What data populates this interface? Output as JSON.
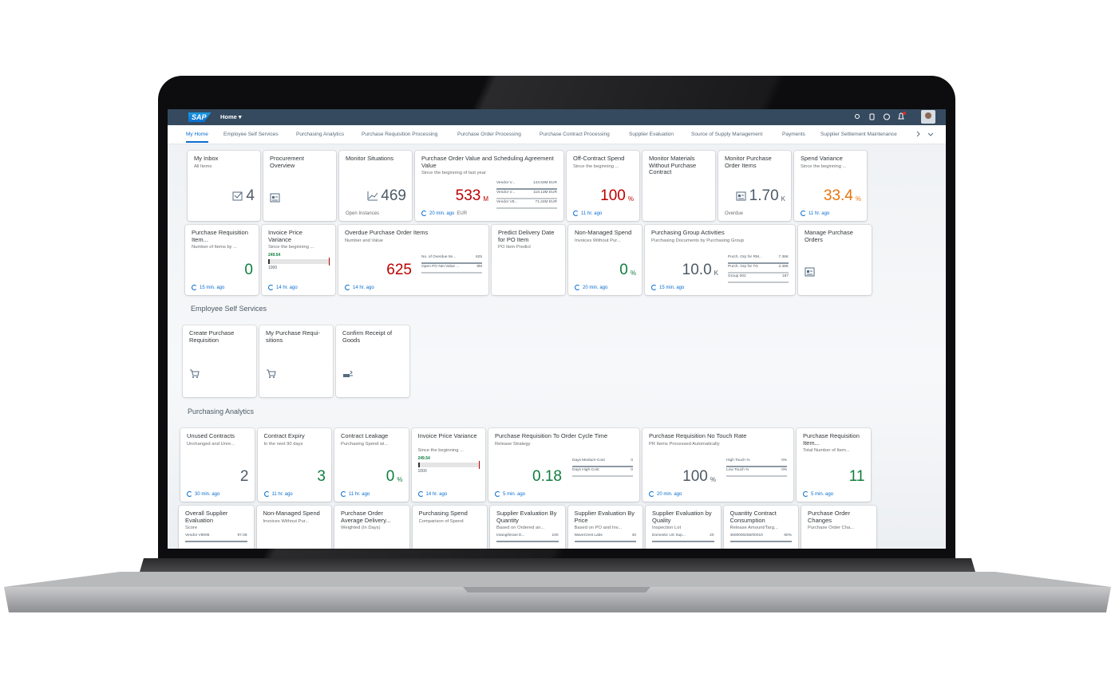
{
  "shell": {
    "logo": "SAP",
    "menu": "Home ▾"
  },
  "tabs": [
    "My Home",
    "Employee Self Services",
    "Purchasing Analytics",
    "Purchase Requisition Processing",
    "Purchase Order Processing",
    "Purchase Contract Processing",
    "Supplier Evaluation",
    "Source of Supply Management",
    "Payments",
    "Supplier Settlement Maintenance"
  ],
  "sections": [
    {
      "rows": [
        [
          {
            "title": "My Inbox",
            "subtitle": "All Items",
            "value": "4",
            "value_color": "#4d5a66"
          },
          {
            "title": "Procurement Overview"
          },
          {
            "title": "Monitor Situations",
            "value": "469",
            "value_color": "#4d5a66",
            "note": "Open Instances"
          },
          {
            "title": "Purchase Order Value and Scheduling Agreement Value",
            "subtitle": "Since the beginning of last year",
            "value": "533",
            "unit": "M",
            "value_color": "#bb0000",
            "footer": "20 min. ago",
            "note": "EUR",
            "bars": [
              {
                "label": "Vendor V...",
                "value": "143.53M EUR"
              },
              {
                "label": "Vendor V...",
                "value": "118.13M EUR"
              },
              {
                "label": "Vendor V8...",
                "value": "71.24M EUR"
              }
            ]
          },
          {
            "title": "Off-Contract Spend",
            "subtitle": "Since the beginning ...",
            "value": "100",
            "unit": "%",
            "value_color": "#bb0000",
            "footer": "11 hr. ago"
          },
          {
            "title": "Monitor Materials Without Purchase Contract"
          },
          {
            "title": "Monitor Purchase Order Items",
            "value": "1.70",
            "unit": "K",
            "value_color": "#4d5a66",
            "note": "Overdue"
          },
          {
            "title": "Spend Variance",
            "subtitle": "Since the beginning ...",
            "value": "33.4",
            "unit": "%",
            "value_color": "#e9730c",
            "footer": "11 hr. ago"
          }
        ],
        [
          {
            "title": "Purchase Requisition Item...",
            "subtitle": "Number of Items by ...",
            "value": "0",
            "value_color": "#107e3e",
            "footer": "15 min. ago"
          },
          {
            "title": "Invoice Price Variance",
            "subtitle": "Since the beginning ...",
            "bullet": [
              "249.54",
              "1000"
            ],
            "footer": "14 hr. ago"
          },
          {
            "title": "Overdue Purchase Order Items",
            "subtitle": "Number and Value",
            "value": "625",
            "value_color": "#bb0000",
            "footer": "14 hr. ago",
            "bars": [
              {
                "label": "No. of Overdue Ite...",
                "value": "625"
              },
              {
                "label": "Open PO Net Value ...",
                "value": "8M"
              }
            ]
          },
          {
            "title": "Predict Delivery Date for PO Item",
            "subtitle": "PO Item Predict"
          },
          {
            "title": "Non-Managed Spend",
            "subtitle": "Invoices Without Pur...",
            "value": "0",
            "unit": "%",
            "value_color": "#107e3e",
            "footer": "20 min. ago"
          },
          {
            "title": "Purchasing Group Activities",
            "subtitle": "Purchasing Documents by Purchasing Group",
            "value": "10.0",
            "unit": "K",
            "value_color": "#4d5a66",
            "footer": "15 min. ago",
            "bars": [
              {
                "label": "Purch. Grp for RM...",
                "value": "7.36K"
              },
              {
                "label": "Purch. Grp for TG",
                "value": "2.48K"
              },
              {
                "label": "Group 002",
                "value": "187"
              }
            ]
          },
          {
            "title": "Manage Purchase Orders"
          }
        ]
      ]
    },
    {
      "title": "Employee Self Services",
      "rows": [
        [
          {
            "title": "Create Purchase Requisition"
          },
          {
            "title": "My Purchase Requi- sitions"
          },
          {
            "title": "Confirm Receipt of Goods"
          }
        ]
      ]
    },
    {
      "title": "Purchasing Analytics",
      "rows": [
        [
          {
            "title": "Unused Contracts",
            "subtitle": "Unchanged and Unre...",
            "value": "2",
            "value_color": "#4d5a66",
            "footer": "30 min. ago"
          },
          {
            "title": "Contract Expiry",
            "subtitle": "In the next 90 days",
            "value": "3",
            "value_color": "#107e3e",
            "footer": "11 hr. ago"
          },
          {
            "title": "Contract Leakage",
            "subtitle": "Purchasing Spend wi...",
            "value": "0",
            "unit": "%",
            "value_color": "#107e3e",
            "footer": "11 hr. ago"
          },
          {
            "title": "Invoice Price Variance",
            "subtitle": "Since the beginning ...",
            "bullet": [
              "249.54",
              "1000"
            ],
            "footer": "14 hr. ago"
          },
          {
            "title": "Purchase Requisition To Order Cycle Time",
            "subtitle": "Release Strategy",
            "value": "0.18",
            "value_color": "#107e3e",
            "footer": "5 min. ago",
            "bars": [
              {
                "label": "Days Medium-Cost",
                "value": "0"
              },
              {
                "label": "Days High-Cost",
                "value": "0"
              }
            ]
          },
          {
            "title": "Purchase Requisition No Touch Rate",
            "subtitle": "PR Items Processed Automatically",
            "value": "100",
            "unit": "%",
            "value_color": "#4d5a66",
            "footer": "20 min. ago",
            "bars": [
              {
                "label": "High Touch %",
                "value": "0%"
              },
              {
                "label": "Low Touch %",
                "value": "0%"
              }
            ]
          },
          {
            "title": "Purchase Requisition Item...",
            "subtitle": "Total Number of Item...",
            "value": "11",
            "value_color": "#107e3e",
            "footer": "5 min. ago"
          }
        ],
        [
          {
            "title": "Overall Supplier Evaluation",
            "subtitle": "Score",
            "bars": [
              {
                "label": "Vendor V8006",
                "value": "97.08"
              }
            ]
          },
          {
            "title": "Non-Managed Spend",
            "subtitle": "Invoices Without Pur..."
          },
          {
            "title": "Purchase Order Average Delivery...",
            "subtitle": "Weighted (In Days)"
          },
          {
            "title": "Purchasing Spend",
            "subtitle": "Comparison of Spend"
          },
          {
            "title": "Supplier Evaluation By Quantity",
            "subtitle": "Based on Ordered an...",
            "bars": [
              {
                "label": "Intangiferant D...",
                "value": "100"
              }
            ]
          },
          {
            "title": "Supplier Evaluation By Price",
            "subtitle": "Based on PO and Inv...",
            "bars": [
              {
                "label": "WaveCrest Labs",
                "value": "40"
              }
            ]
          },
          {
            "title": "Supplier Evaluation by Quality",
            "subtitle": "Inspection Lot",
            "bars": [
              {
                "label": "Domestic US Sup...",
                "value": "20"
              }
            ]
          },
          {
            "title": "Quantity Contract Consumption",
            "subtitle": "Release Amount/Targ...",
            "bars": [
              {
                "label": "4600000256/00010",
                "value": "60%"
              }
            ]
          },
          {
            "title": "Purchase Order Changes",
            "subtitle": "Purchase Order Cha..."
          }
        ]
      ]
    }
  ]
}
